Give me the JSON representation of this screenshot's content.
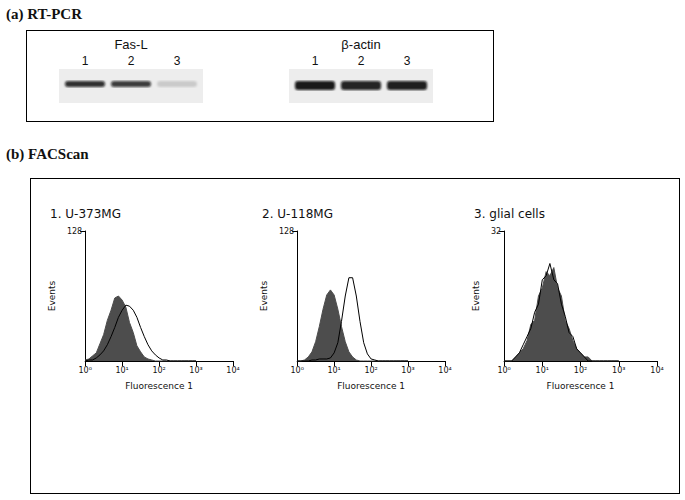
{
  "panel_a": {
    "label": "(a) RT-PCR",
    "gels": [
      {
        "name": "Fas-L",
        "lanes": [
          "1",
          "2",
          "3"
        ],
        "band_intensity": [
          0.85,
          0.8,
          0.15
        ]
      },
      {
        "name": "β-actin",
        "lanes": [
          "1",
          "2",
          "3"
        ],
        "band_intensity": [
          0.95,
          0.9,
          0.92
        ]
      }
    ]
  },
  "panel_b": {
    "label": "(b) FACScan"
  },
  "chart_data": [
    {
      "type": "line",
      "title": "1. U-373MG",
      "x_label": "Fluorescence 1",
      "y_label": "Events",
      "log": "x",
      "grid": false,
      "xlim": [
        1,
        10000
      ],
      "xticks": [
        {
          "value": 1,
          "label": "10⁰"
        },
        {
          "value": 10,
          "label": "10¹"
        },
        {
          "value": 100,
          "label": "10²"
        },
        {
          "value": 1000,
          "label": "10³"
        },
        {
          "value": 10000,
          "label": "10⁴"
        }
      ],
      "ylim": [
        0,
        128
      ],
      "yticks": [
        128
      ],
      "x": [
        1,
        1.26,
        1.58,
        2,
        2.51,
        3.16,
        3.98,
        5.01,
        6.31,
        7.94,
        10,
        12.6,
        15.8,
        20,
        25.1,
        31.6,
        39.8,
        50.1,
        63.1,
        79.4,
        100,
        126,
        158,
        200,
        251,
        316,
        398,
        501,
        631,
        794,
        1000
      ],
      "series": [
        {
          "type": "area",
          "color": "#4d4d4d",
          "values": [
            1,
            2,
            5,
            8,
            17,
            26,
            40,
            50,
            62,
            64,
            60,
            53,
            38,
            28,
            15,
            9,
            4,
            2,
            1,
            0,
            0,
            0,
            0,
            0,
            0,
            0,
            0,
            0,
            0,
            0,
            0
          ]
        },
        {
          "type": "line",
          "color": "#000000",
          "values": [
            0,
            1,
            1,
            3,
            6,
            10,
            16,
            24,
            33,
            43,
            50,
            55,
            54,
            50,
            43,
            33,
            24,
            16,
            10,
            6,
            3,
            1,
            1,
            0,
            0,
            0,
            0,
            0,
            0,
            0,
            0
          ]
        }
      ]
    },
    {
      "type": "line",
      "title": "2. U-118MG",
      "x_label": "Fluorescence 1",
      "y_label": "Events",
      "log": "x",
      "grid": false,
      "xlim": [
        1,
        10000
      ],
      "xticks": [
        {
          "value": 1,
          "label": "10⁰"
        },
        {
          "value": 10,
          "label": "10¹"
        },
        {
          "value": 100,
          "label": "10²"
        },
        {
          "value": 1000,
          "label": "10³"
        },
        {
          "value": 10000,
          "label": "10⁴"
        }
      ],
      "ylim": [
        0,
        128
      ],
      "yticks": [
        128
      ],
      "x": [
        1,
        1.26,
        1.58,
        2,
        2.51,
        3.16,
        3.98,
        5.01,
        6.31,
        7.94,
        10,
        12.6,
        15.8,
        20,
        25.1,
        31.6,
        39.8,
        50.1,
        63.1,
        79.4,
        100,
        126,
        158,
        200,
        251,
        316,
        398,
        501,
        631,
        794,
        1000
      ],
      "series": [
        {
          "type": "area",
          "color": "#4d4d4d",
          "values": [
            0,
            0,
            1,
            4,
            9,
            19,
            34,
            51,
            65,
            70,
            65,
            51,
            34,
            19,
            9,
            4,
            1,
            0,
            0,
            0,
            0,
            0,
            0,
            0,
            0,
            0,
            0,
            0,
            0,
            0,
            0
          ]
        },
        {
          "type": "line",
          "color": "#000000",
          "values": [
            0,
            0,
            0,
            0,
            1,
            1,
            2,
            2,
            2,
            3,
            8,
            18,
            39,
            64,
            82,
            82,
            64,
            39,
            18,
            7,
            2,
            1,
            0,
            0,
            0,
            0,
            0,
            0,
            0,
            0,
            0
          ]
        }
      ]
    },
    {
      "type": "line",
      "title": "3. glial cells",
      "x_label": "Fluorescence 1",
      "y_label": "Events",
      "log": "x",
      "grid": false,
      "xlim": [
        1,
        10000
      ],
      "xticks": [
        {
          "value": 1,
          "label": "10⁰"
        },
        {
          "value": 10,
          "label": "10¹"
        },
        {
          "value": 100,
          "label": "10²"
        },
        {
          "value": 1000,
          "label": "10³"
        },
        {
          "value": 10000,
          "label": "10⁴"
        }
      ],
      "ylim": [
        0,
        32
      ],
      "yticks": [
        32
      ],
      "x": [
        1,
        1.26,
        1.58,
        2,
        2.51,
        3.16,
        3.98,
        5.01,
        6.31,
        7.94,
        10,
        12.6,
        15.8,
        20,
        25.1,
        31.6,
        39.8,
        50.1,
        63.1,
        79.4,
        100,
        126,
        158,
        200,
        251,
        316,
        398,
        501,
        631,
        794,
        1000
      ],
      "series": [
        {
          "type": "area",
          "color": "#4d4d4d",
          "values": [
            0,
            0,
            0,
            1,
            2,
            3,
            5,
            9,
            10,
            16,
            18,
            22,
            21,
            23,
            18,
            16,
            10,
            8,
            5,
            3,
            2,
            1,
            1,
            0,
            0,
            0,
            0,
            0,
            0,
            0,
            0
          ]
        },
        {
          "type": "line",
          "color": "#000000",
          "values": [
            0,
            0,
            0,
            1,
            2,
            4,
            6,
            8,
            12,
            14,
            20,
            21,
            24,
            20,
            19,
            14,
            11,
            7,
            6,
            3,
            2,
            1,
            0,
            0,
            0,
            0,
            0,
            0,
            0,
            0,
            0
          ]
        }
      ]
    }
  ]
}
